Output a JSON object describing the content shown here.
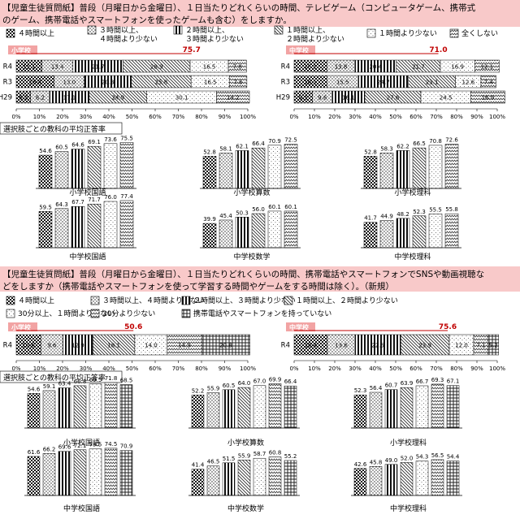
{
  "sections": [
    {
      "header": "【児童生徒質問紙】普段（月曜日から金曜日）、１日当たりどれくらいの時間、テレビゲーム（コンピュータゲーム、携帯式のゲーム、携帯電話やスマートフォンを使ったゲームも含む）をしますか。",
      "legend": [
        {
          "label": "４時間以上",
          "pattern": "p1"
        },
        {
          "label": "３時間以上、４時間より少ない",
          "pattern": "p2"
        },
        {
          "label": "２時間以上、３時間より少ない",
          "pattern": "p3"
        },
        {
          "label": "１時間以上、２時間より少ない",
          "pattern": "p4"
        },
        {
          "label": "１時間より少ない",
          "pattern": "p5"
        },
        {
          "label": "全くしない",
          "pattern": "p6"
        }
      ],
      "hbars": [
        {
          "tag": "小学校",
          "marker": "75.7",
          "marker_pct": 75.7,
          "rows": [
            {
              "label": "R4",
              "values": [
                11.1,
                13.4,
                21.7,
                28.9,
                16.5,
                7.8
              ]
            },
            {
              "label": "R3",
              "values": [
                16.4,
                13.0,
                20.3,
                25.8,
                16.5,
                7.6
              ]
            },
            {
              "label": "H29",
              "values": [
                6.2,
                8.2,
                17.1,
                24.9,
                30.1,
                14.2
              ]
            }
          ]
        },
        {
          "tag": "中学校",
          "marker": "71.0",
          "marker_pct": 71.0,
          "rows": [
            {
              "label": "R4",
              "values": [
                16.1,
                13.8,
                20.4,
                21.7,
                16.9,
                12.1
              ]
            },
            {
              "label": "R3",
              "values": [
                16.1,
                15.5,
                24.7,
                23.1,
                12.6,
                7.4
              ]
            },
            {
              "label": "H29",
              "values": [
                9.1,
                9.6,
                16.1,
                27.6,
                24.5,
                16.9
              ]
            }
          ]
        }
      ],
      "xticks": [
        "0%",
        "10%",
        "20%",
        "30%",
        "40%",
        "50%",
        "60%",
        "70%",
        "80%",
        "90%",
        "100%"
      ],
      "subheader": "選択肢ごとの教科の平均正答率",
      "vcharts": [
        {
          "title": "小学校国語",
          "values": [
            54.6,
            60.5,
            64.6,
            69.1,
            73.6,
            75.5
          ]
        },
        {
          "title": "小学校算数",
          "values": [
            52.8,
            58.1,
            62.1,
            66.4,
            70.9,
            72.5
          ]
        },
        {
          "title": "小学校理科",
          "values": [
            52.8,
            58.3,
            62.2,
            66.5,
            70.8,
            72.6
          ]
        },
        {
          "title": "中学校国語",
          "values": [
            59.5,
            64.3,
            67.7,
            71.7,
            76.0,
            77.4
          ]
        },
        {
          "title": "中学校数学",
          "values": [
            39.9,
            45.4,
            50.3,
            56.0,
            60.1,
            60.1
          ]
        },
        {
          "title": "中学校理科",
          "values": [
            41.7,
            44.9,
            48.2,
            52.3,
            55.5,
            55.8
          ]
        }
      ]
    },
    {
      "header": "【児童生徒質問紙】普段（月曜日から金曜日）、１日当たりどれくらいの時間、携帯電話やスマートフォンでSNSや動画視聴などをしますか（携帯電話やスマートフォンを使って学習する時間やゲームをする時間は除く）。（新規）",
      "legend": [
        {
          "label": "４時間以上",
          "pattern": "p1"
        },
        {
          "label": "３時間以上、４時間より少ない",
          "pattern": "p2"
        },
        {
          "label": "２時間以上、３時間より少ない",
          "pattern": "p3"
        },
        {
          "label": "１時間以上、２時間より少ない",
          "pattern": "p4"
        },
        {
          "label": "30分以上、１時間より少ない",
          "pattern": "p5"
        },
        {
          "label": "30分より少ない",
          "pattern": "p6"
        },
        {
          "label": "携帯電話やスマートフォンを持っていない",
          "pattern": "p7"
        }
      ],
      "hbars": [
        {
          "tag": "小学校",
          "marker": "50.6",
          "marker_pct": 50.6,
          "rows": [
            {
              "label": "R4",
              "values": [
                10.6,
                9.6,
                12.9,
                18.1,
                14.0,
                14.9,
                20.8
              ]
            }
          ]
        },
        {
          "tag": "中学校",
          "marker": "75.6",
          "marker_pct": 75.6,
          "rows": [
            {
              "label": "R4",
              "values": [
                16.4,
                13.6,
                22.5,
                23.9,
                12.0,
                7.1,
                5.2
              ]
            }
          ]
        }
      ],
      "xticks": [
        "0%",
        "10%",
        "20%",
        "30%",
        "40%",
        "50%",
        "60%",
        "70%",
        "80%",
        "90%",
        "100%"
      ],
      "subheader": "選択肢ごとの教科の平均正答率",
      "vcharts": [
        {
          "title": "小学校国語",
          "values": [
            54.6,
            59.1,
            63.4,
            66.8,
            69.5,
            71.8,
            68.5
          ]
        },
        {
          "title": "小学校算数",
          "values": [
            52.2,
            55.9,
            60.5,
            64.0,
            67.0,
            69.9,
            66.4
          ]
        },
        {
          "title": "小学校理科",
          "values": [
            52.3,
            56.4,
            60.7,
            63.9,
            66.7,
            69.3,
            67.1
          ]
        },
        {
          "title": "中学校国語",
          "values": [
            61.6,
            66.2,
            69.6,
            72.1,
            73.5,
            74.5,
            70.9
          ]
        },
        {
          "title": "中学校数学",
          "values": [
            41.4,
            46.5,
            51.5,
            55.9,
            58.7,
            60.8,
            55.2
          ]
        },
        {
          "title": "中学校理科",
          "values": [
            42.6,
            45.8,
            49.0,
            52.0,
            54.3,
            56.5,
            54.4
          ]
        }
      ]
    }
  ]
}
